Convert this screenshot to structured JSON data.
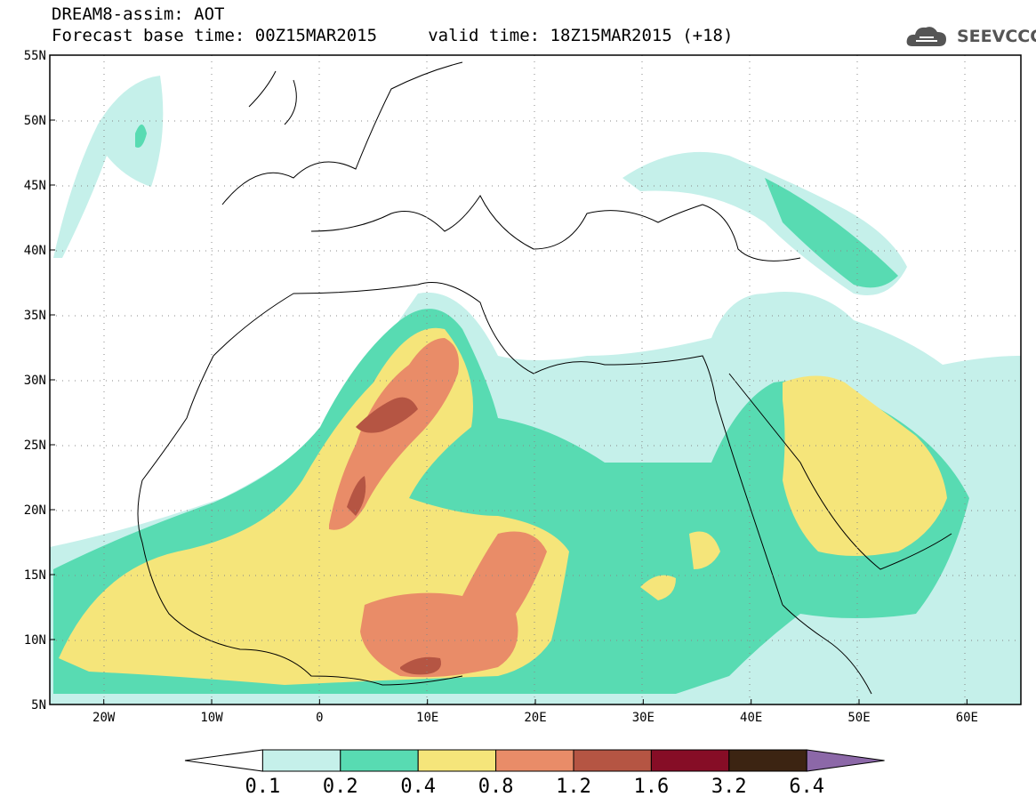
{
  "header": {
    "title_line1": "DREAM8-assim: AOT",
    "title_line2": "Forecast base time: 00Z15MAR2015     valid time: 18Z15MAR2015 (+18)",
    "logo_text": "SEEVCCC"
  },
  "map": {
    "lat_labels": [
      "55N",
      "50N",
      "45N",
      "40N",
      "35N",
      "30N",
      "25N",
      "20N",
      "15N",
      "10N",
      "5N"
    ],
    "lon_labels": [
      "20W",
      "10W",
      "0",
      "10E",
      "20E",
      "30E",
      "40E",
      "50E",
      "60E"
    ],
    "region": {
      "lon_range": [
        -25,
        65
      ],
      "lat_range": [
        5,
        55
      ]
    }
  },
  "legend": {
    "colors": [
      "#ffffff",
      "#c5f0ea",
      "#58dbb2",
      "#f5e57a",
      "#e98c68",
      "#b55543",
      "#860d26",
      "#3c2412",
      "#8c68a8"
    ],
    "labels": [
      "0.1",
      "0.2",
      "0.4",
      "0.8",
      "1.2",
      "1.6",
      "3.2",
      "6.4"
    ]
  }
}
